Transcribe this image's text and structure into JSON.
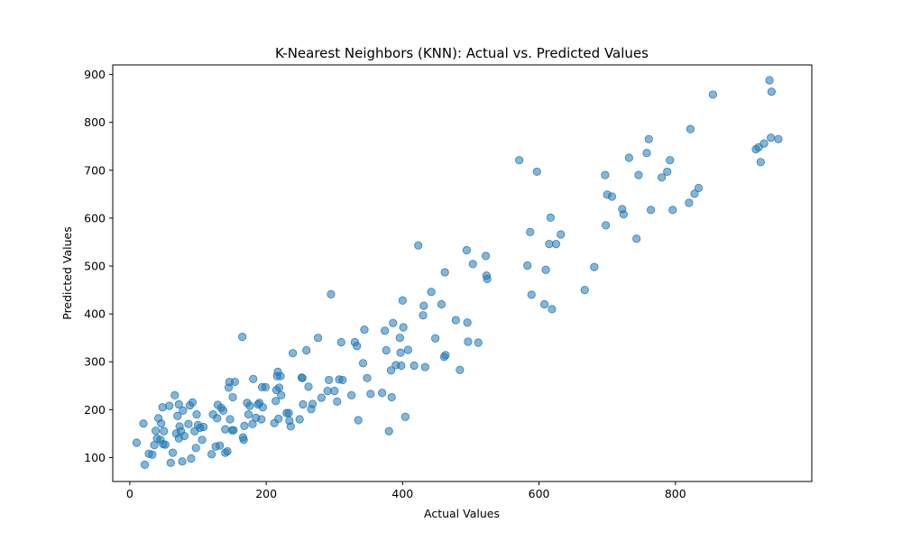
{
  "chart_data": {
    "type": "scatter",
    "title": "K-Nearest Neighbors (KNN): Actual vs. Predicted Values",
    "xlabel": "Actual Values",
    "ylabel": "Predicted Values",
    "xlim": [
      -25,
      1000
    ],
    "ylim": [
      50,
      920
    ],
    "xticks": [
      0,
      200,
      400,
      600,
      800
    ],
    "yticks": [
      100,
      200,
      300,
      400,
      500,
      600,
      700,
      800,
      900
    ],
    "grid": false,
    "marker_color": "#1f77b4",
    "marker_alpha": 0.55,
    "points": [
      [
        10,
        131
      ],
      [
        20,
        171
      ],
      [
        22,
        85
      ],
      [
        28,
        108
      ],
      [
        33,
        106
      ],
      [
        36,
        126
      ],
      [
        38,
        156
      ],
      [
        40,
        140
      ],
      [
        42,
        182
      ],
      [
        45,
        137
      ],
      [
        46,
        171
      ],
      [
        48,
        205
      ],
      [
        49,
        128
      ],
      [
        50,
        155
      ],
      [
        52,
        127
      ],
      [
        58,
        208
      ],
      [
        60,
        89
      ],
      [
        63,
        110
      ],
      [
        66,
        230
      ],
      [
        68,
        150
      ],
      [
        70,
        187
      ],
      [
        72,
        211
      ],
      [
        72,
        140
      ],
      [
        73,
        165
      ],
      [
        75,
        155
      ],
      [
        77,
        92
      ],
      [
        78,
        198
      ],
      [
        80,
        145
      ],
      [
        86,
        170
      ],
      [
        88,
        209
      ],
      [
        90,
        98
      ],
      [
        92,
        215
      ],
      [
        95,
        155
      ],
      [
        97,
        120
      ],
      [
        98,
        190
      ],
      [
        100,
        168
      ],
      [
        103,
        162
      ],
      [
        106,
        137
      ],
      [
        108,
        164
      ],
      [
        120,
        107
      ],
      [
        122,
        190
      ],
      [
        126,
        123
      ],
      [
        128,
        182
      ],
      [
        129,
        210
      ],
      [
        132,
        125
      ],
      [
        134,
        204
      ],
      [
        137,
        198
      ],
      [
        140,
        110
      ],
      [
        140,
        159
      ],
      [
        143,
        113
      ],
      [
        145,
        246
      ],
      [
        146,
        258
      ],
      [
        147,
        180
      ],
      [
        150,
        157
      ],
      [
        151,
        226
      ],
      [
        152,
        157
      ],
      [
        154,
        258
      ],
      [
        165,
        352
      ],
      [
        166,
        142
      ],
      [
        167,
        137
      ],
      [
        168,
        166
      ],
      [
        172,
        214
      ],
      [
        174,
        190
      ],
      [
        176,
        208
      ],
      [
        180,
        170
      ],
      [
        181,
        264
      ],
      [
        185,
        183
      ],
      [
        188,
        211
      ],
      [
        190,
        214
      ],
      [
        193,
        180
      ],
      [
        194,
        247
      ],
      [
        195,
        205
      ],
      [
        199,
        247
      ],
      [
        212,
        172
      ],
      [
        214,
        218
      ],
      [
        215,
        241
      ],
      [
        216,
        270
      ],
      [
        217,
        279
      ],
      [
        218,
        181
      ],
      [
        219,
        246
      ],
      [
        221,
        270
      ],
      [
        222,
        230
      ],
      [
        230,
        193
      ],
      [
        233,
        193
      ],
      [
        234,
        177
      ],
      [
        236,
        165
      ],
      [
        239,
        318
      ],
      [
        249,
        180
      ],
      [
        252,
        267
      ],
      [
        253,
        266
      ],
      [
        254,
        211
      ],
      [
        259,
        324
      ],
      [
        262,
        248
      ],
      [
        266,
        201
      ],
      [
        268,
        212
      ],
      [
        276,
        350
      ],
      [
        281,
        225
      ],
      [
        290,
        239
      ],
      [
        292,
        262
      ],
      [
        295,
        441
      ],
      [
        300,
        239
      ],
      [
        304,
        217
      ],
      [
        307,
        263
      ],
      [
        310,
        341
      ],
      [
        312,
        262
      ],
      [
        325,
        230
      ],
      [
        330,
        341
      ],
      [
        333,
        333
      ],
      [
        335,
        178
      ],
      [
        342,
        297
      ],
      [
        344,
        367
      ],
      [
        348,
        266
      ],
      [
        353,
        233
      ],
      [
        370,
        235
      ],
      [
        374,
        365
      ],
      [
        376,
        324
      ],
      [
        380,
        155
      ],
      [
        383,
        282
      ],
      [
        384,
        226
      ],
      [
        386,
        381
      ],
      [
        390,
        293
      ],
      [
        396,
        350
      ],
      [
        397,
        319
      ],
      [
        398,
        292
      ],
      [
        400,
        428
      ],
      [
        401,
        372
      ],
      [
        404,
        185
      ],
      [
        408,
        325
      ],
      [
        417,
        292
      ],
      [
        423,
        543
      ],
      [
        430,
        397
      ],
      [
        431,
        417
      ],
      [
        433,
        289
      ],
      [
        442,
        446
      ],
      [
        448,
        349
      ],
      [
        457,
        420
      ],
      [
        461,
        310
      ],
      [
        462,
        487
      ],
      [
        463,
        314
      ],
      [
        478,
        387
      ],
      [
        484,
        283
      ],
      [
        494,
        533
      ],
      [
        495,
        382
      ],
      [
        496,
        342
      ],
      [
        503,
        504
      ],
      [
        511,
        340
      ],
      [
        522,
        521
      ],
      [
        523,
        480
      ],
      [
        524,
        473
      ],
      [
        571,
        721
      ],
      [
        583,
        501
      ],
      [
        587,
        571
      ],
      [
        589,
        440
      ],
      [
        597,
        697
      ],
      [
        608,
        420
      ],
      [
        610,
        492
      ],
      [
        615,
        546
      ],
      [
        617,
        601
      ],
      [
        619,
        410
      ],
      [
        625,
        546
      ],
      [
        632,
        566
      ],
      [
        667,
        450
      ],
      [
        681,
        498
      ],
      [
        697,
        690
      ],
      [
        698,
        585
      ],
      [
        700,
        649
      ],
      [
        707,
        645
      ],
      [
        722,
        619
      ],
      [
        724,
        608
      ],
      [
        732,
        726
      ],
      [
        743,
        557
      ],
      [
        746,
        690
      ],
      [
        758,
        736
      ],
      [
        761,
        765
      ],
      [
        764,
        617
      ],
      [
        780,
        685
      ],
      [
        788,
        697
      ],
      [
        792,
        721
      ],
      [
        796,
        617
      ],
      [
        820,
        632
      ],
      [
        822,
        786
      ],
      [
        828,
        651
      ],
      [
        834,
        663
      ],
      [
        855,
        858
      ],
      [
        918,
        744
      ],
      [
        922,
        748
      ],
      [
        925,
        717
      ],
      [
        930,
        756
      ],
      [
        938,
        888
      ],
      [
        940,
        768
      ],
      [
        941,
        864
      ],
      [
        951,
        765
      ]
    ]
  }
}
